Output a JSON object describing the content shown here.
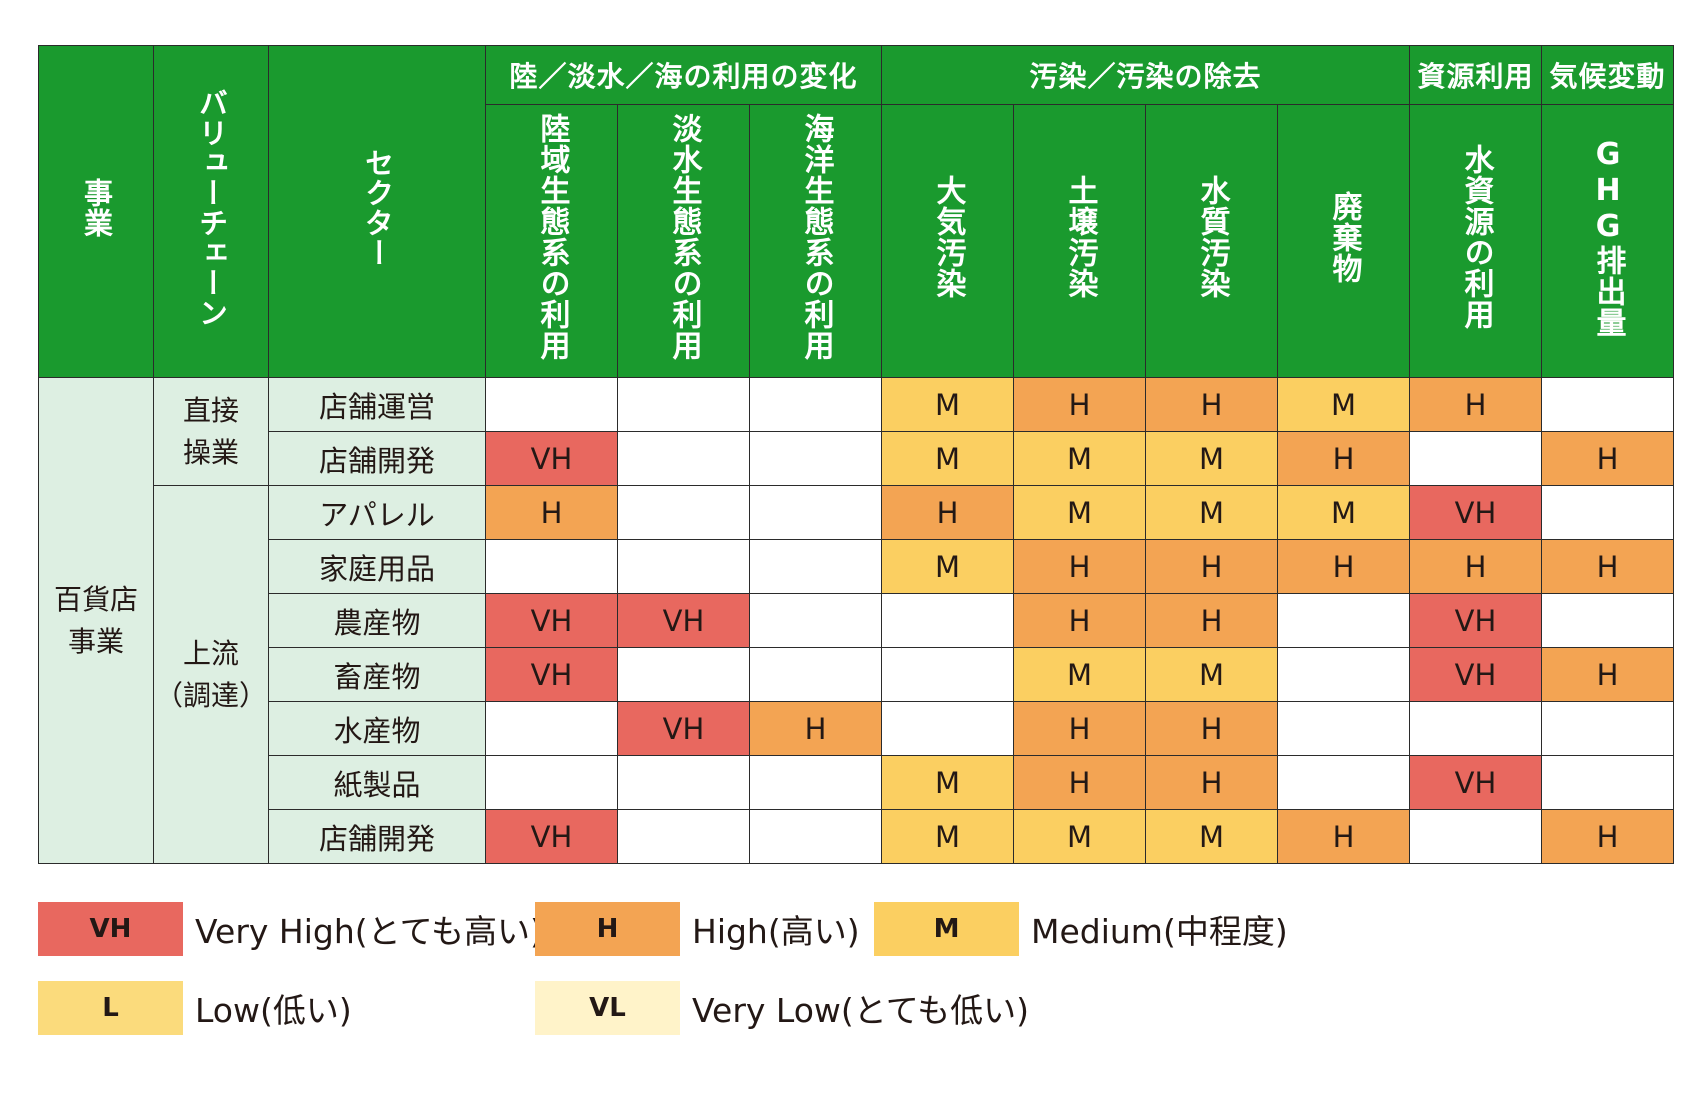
{
  "chart_data": {
    "type": "table",
    "header": {
      "business": "事業",
      "value_chain": "バリューチェーン",
      "sector": "セクター",
      "groups": [
        {
          "label": "陸／淡水／海の利用の変化",
          "span": 3
        },
        {
          "label": "汚染／汚染の除去",
          "span": 4
        },
        {
          "label": "資源利用",
          "span": 1
        },
        {
          "label": "気候変動",
          "span": 1
        }
      ],
      "columns": [
        "陸域生態系の利用",
        "淡水生態系の利用",
        "海洋生態系の利用",
        "大気汚染",
        "土壌汚染",
        "水質汚染",
        "廃棄物",
        "水資源の利用",
        "GHG排出量"
      ]
    },
    "business": "百貨店\n事業",
    "value_chain": [
      {
        "label": "直接\n操業",
        "span": 2
      },
      {
        "label": "上流\n（調達）",
        "span": 7
      }
    ],
    "rows": [
      {
        "sector": "店舗運営",
        "values": [
          "",
          "",
          "",
          "M",
          "H",
          "H",
          "M",
          "H",
          ""
        ]
      },
      {
        "sector": "店舗開発",
        "values": [
          "VH",
          "",
          "",
          "M",
          "M",
          "M",
          "H",
          "",
          "H"
        ]
      },
      {
        "sector": "アパレル",
        "values": [
          "H",
          "",
          "",
          "H",
          "M",
          "M",
          "M",
          "VH",
          ""
        ]
      },
      {
        "sector": "家庭用品",
        "values": [
          "",
          "",
          "",
          "M",
          "H",
          "H",
          "H",
          "H",
          "H"
        ]
      },
      {
        "sector": "農産物",
        "values": [
          "VH",
          "VH",
          "",
          "",
          "H",
          "H",
          "",
          "VH",
          ""
        ]
      },
      {
        "sector": "畜産物",
        "values": [
          "VH",
          "",
          "",
          "",
          "M",
          "M",
          "",
          "VH",
          "H"
        ]
      },
      {
        "sector": "水産物",
        "values": [
          "",
          "VH",
          "H",
          "",
          "H",
          "H",
          "",
          "",
          ""
        ]
      },
      {
        "sector": "紙製品",
        "values": [
          "",
          "",
          "",
          "M",
          "H",
          "H",
          "",
          "VH",
          ""
        ]
      },
      {
        "sector": "店舗開発",
        "values": [
          "VH",
          "",
          "",
          "M",
          "M",
          "M",
          "H",
          "",
          "H"
        ]
      }
    ],
    "legend": [
      {
        "code": "VH",
        "label": "Very High(とても高い)"
      },
      {
        "code": "H",
        "label": "High(高い)"
      },
      {
        "code": "M",
        "label": "Medium(中程度)"
      },
      {
        "code": "L",
        "label": "Low(低い)"
      },
      {
        "code": "VL",
        "label": "Very Low(とても低い)"
      }
    ],
    "colors": {
      "header": "#1a9a2e",
      "side": "#ddefe2",
      "VH": "#e8685f",
      "H": "#f3a453",
      "M": "#fbcf61",
      "L": "#fbdb7c",
      "VL": "#fff3c9"
    }
  }
}
